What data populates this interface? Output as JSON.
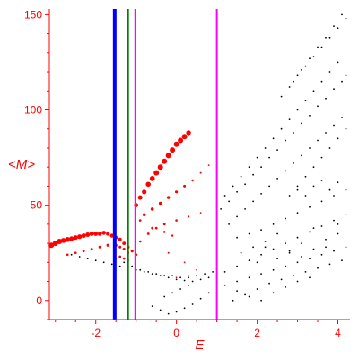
{
  "colors": {
    "axis": "#ff0000",
    "black_points": "#000000",
    "red_points": "#ff0000",
    "line_blue": "#0000ff",
    "line_green": "#008000",
    "line_magenta": "#ff00ff"
  },
  "chart_data": {
    "type": "scatter",
    "xlabel": "E",
    "ylabel": "<M>",
    "xlim": [
      -3.15,
      4.3
    ],
    "ylim": [
      -10,
      153
    ],
    "x_ticks": [
      -2,
      0,
      2,
      4
    ],
    "x_tick_labels": [
      "-2",
      "0",
      "2",
      "4"
    ],
    "y_ticks": [
      0,
      50,
      100,
      150
    ],
    "y_tick_labels": [
      "0",
      "50",
      "100",
      "150"
    ],
    "grid": false,
    "vertical_lines": [
      {
        "x": -1.53,
        "color": "#0000ff"
      },
      {
        "x": -1.2,
        "color": "#008000"
      },
      {
        "x": -1.02,
        "color": "#ff00ff"
      },
      {
        "x": 1.0,
        "color": "#ff00ff"
      }
    ],
    "series": [
      {
        "color": "#ff0000",
        "points": [
          [
            -3.1,
            29,
            3
          ],
          [
            -3.0,
            30,
            3
          ],
          [
            -2.9,
            31,
            3
          ],
          [
            -2.8,
            31.5,
            2.8
          ],
          [
            -2.7,
            32,
            2.8
          ],
          [
            -2.6,
            32.5,
            2.6
          ],
          [
            -2.5,
            33,
            2.6
          ],
          [
            -2.4,
            33.5,
            2.6
          ],
          [
            -2.3,
            34,
            2.5
          ],
          [
            -2.2,
            34.5,
            2.5
          ],
          [
            -2.1,
            35,
            2.4
          ],
          [
            -2.0,
            35,
            2.4
          ],
          [
            -1.9,
            35,
            2.3
          ],
          [
            -1.8,
            35.5,
            2.3
          ],
          [
            -1.7,
            35,
            2.2
          ],
          [
            -1.6,
            34,
            2.2
          ],
          [
            -1.5,
            33,
            2.1
          ],
          [
            -1.4,
            32,
            2.0
          ],
          [
            -1.3,
            30,
            1.9
          ],
          [
            -1.2,
            28,
            1.8
          ],
          [
            -1.1,
            26,
            1.6
          ],
          [
            -1.0,
            24,
            1.4
          ],
          [
            -2.7,
            24,
            1.3
          ],
          [
            -2.5,
            25,
            1.3
          ],
          [
            -2.3,
            26,
            1.4
          ],
          [
            -2.1,
            27,
            1.4
          ],
          [
            -1.9,
            28,
            1.5
          ],
          [
            -1.7,
            29,
            1.6
          ],
          [
            -1.5,
            29,
            1.6
          ],
          [
            -1.4,
            28,
            1.5
          ],
          [
            -1.3,
            27,
            1.5
          ],
          [
            -1.2,
            25,
            1.4
          ],
          [
            -1.0,
            50,
            2.3
          ],
          [
            -0.9,
            54,
            2.5
          ],
          [
            -0.8,
            57,
            2.6
          ],
          [
            -0.7,
            61,
            2.8
          ],
          [
            -0.6,
            64,
            2.9
          ],
          [
            -0.5,
            67,
            3.0
          ],
          [
            -0.4,
            70,
            3.0
          ],
          [
            -0.3,
            73,
            3.0
          ],
          [
            -0.2,
            76,
            3.0
          ],
          [
            -0.1,
            79,
            3.0
          ],
          [
            0.0,
            82,
            3.0
          ],
          [
            0.1,
            84,
            3.0
          ],
          [
            0.2,
            86,
            3.0
          ],
          [
            0.3,
            88,
            2.7
          ],
          [
            -0.8,
            45,
            1.8
          ],
          [
            -0.6,
            48,
            1.8
          ],
          [
            -0.4,
            51,
            1.8
          ],
          [
            -0.2,
            54,
            1.7
          ],
          [
            0.0,
            57,
            1.6
          ],
          [
            0.2,
            60,
            1.5
          ],
          [
            0.4,
            63,
            1.2
          ],
          [
            0.6,
            67,
            1.0
          ],
          [
            0.8,
            71,
            0.9
          ],
          [
            -0.9,
            42,
            1.3
          ],
          [
            -0.6,
            38,
            1.4
          ],
          [
            -0.3,
            40,
            1.4
          ],
          [
            0.0,
            42,
            1.3
          ],
          [
            0.3,
            44,
            1.1
          ],
          [
            0.6,
            46,
            0.9
          ],
          [
            -0.9,
            31,
            1.3
          ],
          [
            -0.7,
            35,
            1.4
          ],
          [
            -0.5,
            38,
            1.4
          ],
          [
            -0.3,
            36,
            1.3
          ],
          [
            -0.1,
            34,
            1.2
          ],
          [
            -1.4,
            23,
            1.4
          ],
          [
            -1.3,
            22,
            1.3
          ],
          [
            -1.2,
            21,
            1.2
          ],
          [
            -0.2,
            25,
            1.0
          ],
          [
            0.2,
            20,
            0.9
          ],
          [
            0.5,
            16,
            0.9
          ],
          [
            0.0,
            12,
            0.9
          ],
          [
            0.3,
            13,
            0.8
          ]
        ]
      },
      {
        "color": "#000000",
        "points": [
          [
            -2.6,
            24
          ],
          [
            -2.4,
            23
          ],
          [
            -2.2,
            22
          ],
          [
            -2.0,
            21
          ],
          [
            -1.8,
            20
          ],
          [
            -1.6,
            19
          ],
          [
            -1.4,
            18
          ],
          [
            -1.2,
            17
          ],
          [
            -1.0,
            16
          ],
          [
            -0.8,
            15
          ],
          [
            -0.6,
            14
          ],
          [
            -0.4,
            13
          ],
          [
            -0.2,
            12
          ],
          [
            0.0,
            11
          ],
          [
            0.2,
            10.5
          ],
          [
            0.4,
            10
          ],
          [
            0.6,
            11
          ],
          [
            0.8,
            12
          ],
          [
            -1.5,
            22
          ],
          [
            -1.3,
            20
          ],
          [
            -1.1,
            18
          ],
          [
            -0.9,
            16
          ],
          [
            -0.7,
            15
          ],
          [
            -0.5,
            14
          ],
          [
            -0.3,
            13
          ],
          [
            -0.1,
            13
          ],
          [
            0.1,
            12
          ],
          [
            0.3,
            12
          ],
          [
            0.5,
            13
          ],
          [
            0.7,
            14
          ],
          [
            0.9,
            15
          ],
          [
            -0.6,
            -3
          ],
          [
            -0.4,
            -5
          ],
          [
            -0.2,
            -7
          ],
          [
            0.0,
            -6
          ],
          [
            0.2,
            -4
          ],
          [
            0.4,
            -2
          ],
          [
            0.6,
            1
          ],
          [
            0.8,
            4
          ],
          [
            -0.3,
            2
          ],
          [
            -0.1,
            4
          ],
          [
            0.1,
            6
          ],
          [
            0.3,
            8
          ],
          [
            1.0,
            50
          ],
          [
            1.2,
            55
          ],
          [
            1.4,
            60
          ],
          [
            1.6,
            65
          ],
          [
            1.8,
            70
          ],
          [
            2.0,
            75
          ],
          [
            2.2,
            80
          ],
          [
            2.4,
            85
          ],
          [
            2.6,
            90
          ],
          [
            2.8,
            95
          ],
          [
            3.0,
            100
          ],
          [
            3.2,
            105
          ],
          [
            3.4,
            110
          ],
          [
            3.6,
            115
          ],
          [
            3.8,
            120
          ],
          [
            4.0,
            125
          ],
          [
            1.1,
            48
          ],
          [
            1.3,
            52
          ],
          [
            1.5,
            57
          ],
          [
            1.7,
            61
          ],
          [
            1.9,
            66
          ],
          [
            2.1,
            70
          ],
          [
            2.3,
            75
          ],
          [
            2.5,
            79
          ],
          [
            2.7,
            84
          ],
          [
            2.9,
            88
          ],
          [
            3.1,
            93
          ],
          [
            3.3,
            97
          ],
          [
            3.5,
            102
          ],
          [
            3.7,
            106
          ],
          [
            3.9,
            111
          ],
          [
            4.1,
            115
          ],
          [
            4.2,
            118
          ],
          [
            2.6,
            107
          ],
          [
            2.8,
            112
          ],
          [
            3.0,
            118
          ],
          [
            3.2,
            123
          ],
          [
            3.4,
            128
          ],
          [
            3.6,
            133
          ],
          [
            3.8,
            138
          ],
          [
            4.0,
            143
          ],
          [
            4.2,
            148
          ],
          [
            2.9,
            115
          ],
          [
            3.1,
            121
          ],
          [
            3.3,
            127
          ],
          [
            3.5,
            133
          ],
          [
            3.7,
            138
          ],
          [
            3.9,
            144
          ],
          [
            4.1,
            150
          ],
          [
            1.3,
            40
          ],
          [
            1.5,
            44
          ],
          [
            1.7,
            48
          ],
          [
            1.9,
            52
          ],
          [
            2.1,
            56
          ],
          [
            2.3,
            60
          ],
          [
            2.5,
            64
          ],
          [
            2.7,
            68
          ],
          [
            2.9,
            72
          ],
          [
            3.1,
            76
          ],
          [
            3.3,
            80
          ],
          [
            3.5,
            84
          ],
          [
            3.7,
            88
          ],
          [
            3.9,
            92
          ],
          [
            4.1,
            96
          ],
          [
            1.5,
            33
          ],
          [
            1.8,
            35
          ],
          [
            2.1,
            37
          ],
          [
            2.4,
            40
          ],
          [
            2.7,
            43
          ],
          [
            3.0,
            46
          ],
          [
            3.3,
            49
          ],
          [
            3.6,
            52
          ],
          [
            3.9,
            55
          ],
          [
            4.2,
            58
          ],
          [
            1.2,
            15
          ],
          [
            1.5,
            18
          ],
          [
            1.8,
            21
          ],
          [
            2.1,
            24
          ],
          [
            2.4,
            27
          ],
          [
            2.7,
            30
          ],
          [
            3.0,
            33
          ],
          [
            3.3,
            36
          ],
          [
            3.6,
            39
          ],
          [
            3.9,
            42
          ],
          [
            4.2,
            45
          ],
          [
            1.2,
            8
          ],
          [
            1.5,
            10
          ],
          [
            1.8,
            12
          ],
          [
            2.1,
            14
          ],
          [
            2.4,
            16
          ],
          [
            2.7,
            18
          ],
          [
            3.0,
            20
          ],
          [
            3.3,
            22
          ],
          [
            3.6,
            24
          ],
          [
            3.9,
            26
          ],
          [
            4.2,
            28
          ],
          [
            1.4,
            0
          ],
          [
            1.7,
            3
          ],
          [
            2.0,
            6
          ],
          [
            2.3,
            9
          ],
          [
            2.6,
            11
          ],
          [
            2.9,
            13
          ],
          [
            3.2,
            15
          ],
          [
            3.5,
            17
          ],
          [
            3.8,
            19
          ],
          [
            4.1,
            21
          ],
          [
            2.0,
            20
          ],
          [
            2.2,
            28
          ],
          [
            2.5,
            35
          ],
          [
            2.8,
            25
          ],
          [
            3.1,
            30
          ],
          [
            3.4,
            38
          ],
          [
            3.7,
            28
          ],
          [
            4.0,
            35
          ],
          [
            1.6,
            25
          ],
          [
            1.9,
            28
          ],
          [
            2.2,
            31
          ],
          [
            2.5,
            22
          ],
          [
            2.8,
            26
          ],
          [
            3.1,
            23
          ],
          [
            3.4,
            27
          ],
          [
            3.7,
            32
          ],
          [
            4.0,
            40
          ],
          [
            3.0,
            60
          ],
          [
            3.2,
            65
          ],
          [
            3.4,
            70
          ],
          [
            3.6,
            75
          ],
          [
            3.8,
            80
          ],
          [
            4.0,
            85
          ],
          [
            4.2,
            90
          ],
          [
            2.8,
            55
          ],
          [
            3.0,
            58
          ],
          [
            3.2,
            55
          ],
          [
            3.4,
            60
          ],
          [
            3.6,
            63
          ],
          [
            3.8,
            58
          ],
          [
            4.0,
            62
          ],
          [
            1.5,
            5
          ],
          [
            1.8,
            2
          ],
          [
            2.1,
            0
          ],
          [
            2.4,
            4
          ],
          [
            2.7,
            7
          ],
          [
            3.0,
            10
          ],
          [
            3.3,
            12
          ]
        ]
      }
    ]
  }
}
